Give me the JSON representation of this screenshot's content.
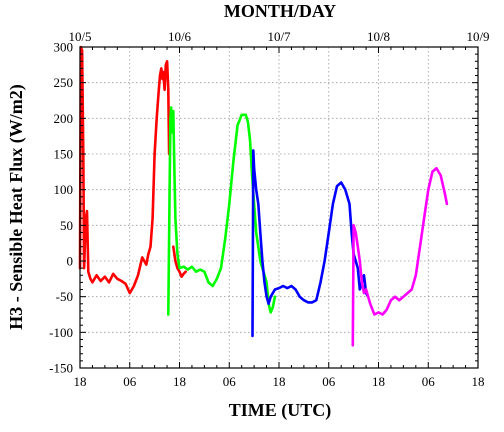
{
  "chart_data": {
    "type": "line",
    "title": "",
    "xlabel": "TIME (UTC)",
    "top_xlabel": "MONTH/DAY",
    "ylabel": "H3 - Sensible Heat Flux (W/m2)",
    "ylim": [
      -150,
      300
    ],
    "yticks": [
      -150,
      -100,
      -50,
      0,
      50,
      100,
      150,
      200,
      250,
      300
    ],
    "xlim": [
      0,
      96
    ],
    "xtick_labels_bottom": [
      "18",
      "06",
      "18",
      "06",
      "18",
      "06",
      "18",
      "06",
      "18"
    ],
    "xtick_labels_top": [
      "10/5",
      "10/6",
      "10/7",
      "10/8",
      "10/9"
    ],
    "grid": true,
    "series": [
      {
        "color": "#ff0000",
        "x_unit": "hours since 10/4 18 UTC",
        "points": [
          [
            0,
            -10
          ],
          [
            0.2,
            300
          ],
          [
            0.5,
            295
          ],
          [
            0.8,
            150
          ],
          [
            1,
            -10
          ],
          [
            1.4,
            60
          ],
          [
            1.7,
            70
          ],
          [
            2,
            -15
          ],
          [
            2.5,
            -25
          ],
          [
            3,
            -30
          ],
          [
            4,
            -20
          ],
          [
            5,
            -28
          ],
          [
            6,
            -22
          ],
          [
            7,
            -30
          ],
          [
            8,
            -18
          ],
          [
            9,
            -25
          ],
          [
            10,
            -28
          ],
          [
            11,
            -32
          ],
          [
            12,
            -45
          ],
          [
            13,
            -35
          ],
          [
            14,
            -20
          ],
          [
            15,
            5
          ],
          [
            16,
            -5
          ],
          [
            16.5,
            10
          ],
          [
            17,
            20
          ],
          [
            17.5,
            60
          ],
          [
            18,
            150
          ],
          [
            18.5,
            200
          ],
          [
            19,
            240
          ],
          [
            19.3,
            260
          ],
          [
            19.6,
            270
          ],
          [
            19.9,
            255
          ],
          [
            20.1,
            265
          ],
          [
            20.4,
            240
          ],
          [
            20.7,
            275
          ],
          [
            21,
            280
          ],
          [
            21.3,
            240
          ],
          [
            21.5,
            150
          ],
          [
            21.7,
            180
          ]
        ]
      },
      {
        "color": "#ff0000",
        "x_unit": "hours since 10/4 18 UTC",
        "points": [
          [
            22.5,
            20
          ],
          [
            23,
            0
          ],
          [
            23.5,
            -10
          ],
          [
            24,
            -15
          ],
          [
            24.5,
            -22
          ],
          [
            25,
            -18
          ],
          [
            25.5,
            -15
          ]
        ]
      },
      {
        "color": "#00ff00",
        "x_unit": "hours since 10/4 18 UTC",
        "points": [
          [
            21.3,
            -75
          ],
          [
            21.6,
            100
          ],
          [
            21.8,
            200
          ],
          [
            22,
            215
          ],
          [
            22.2,
            180
          ],
          [
            22.5,
            210
          ],
          [
            22.8,
            120
          ],
          [
            23,
            60
          ],
          [
            23.5,
            10
          ],
          [
            24,
            -10
          ],
          [
            25,
            -8
          ],
          [
            26,
            -12
          ],
          [
            27,
            -8
          ],
          [
            28,
            -15
          ],
          [
            29,
            -12
          ],
          [
            30,
            -15
          ],
          [
            31,
            -30
          ],
          [
            32,
            -35
          ],
          [
            33,
            -25
          ],
          [
            34,
            -10
          ],
          [
            35,
            30
          ],
          [
            36,
            80
          ],
          [
            37,
            140
          ],
          [
            38,
            190
          ],
          [
            39,
            205
          ],
          [
            40,
            205
          ],
          [
            40.5,
            195
          ],
          [
            41,
            170
          ],
          [
            41.5,
            120
          ],
          [
            42,
            80
          ],
          [
            42.5,
            40
          ],
          [
            43,
            20
          ],
          [
            43.5,
            0
          ],
          [
            44,
            -10
          ],
          [
            45,
            -30
          ],
          [
            45.5,
            -60
          ],
          [
            46,
            -72
          ],
          [
            46.5,
            -65
          ],
          [
            47,
            -50
          ]
        ]
      },
      {
        "color": "#0000ff",
        "x_unit": "hours since 10/4 18 UTC",
        "points": [
          [
            41.6,
            -105
          ],
          [
            41.8,
            155
          ],
          [
            42,
            130
          ],
          [
            42.5,
            100
          ],
          [
            43,
            80
          ],
          [
            43.5,
            40
          ],
          [
            44,
            0
          ],
          [
            44.5,
            -30
          ],
          [
            45,
            -50
          ],
          [
            45.5,
            -60
          ],
          [
            46,
            -50
          ],
          [
            47,
            -40
          ],
          [
            48,
            -38
          ],
          [
            49,
            -35
          ],
          [
            50,
            -38
          ],
          [
            51,
            -35
          ],
          [
            52,
            -40
          ],
          [
            53,
            -50
          ],
          [
            54,
            -55
          ],
          [
            55,
            -58
          ],
          [
            56,
            -58
          ],
          [
            57,
            -55
          ],
          [
            58,
            -30
          ],
          [
            59,
            0
          ],
          [
            60,
            40
          ],
          [
            61,
            80
          ],
          [
            62,
            105
          ],
          [
            63,
            110
          ],
          [
            64,
            100
          ],
          [
            65,
            80
          ],
          [
            65.5,
            40
          ],
          [
            66,
            10
          ],
          [
            66.5,
            0
          ],
          [
            67,
            -10
          ],
          [
            67.5,
            -40
          ],
          [
            68,
            -30
          ],
          [
            68.5,
            -20
          ],
          [
            69,
            -45
          ],
          [
            69.5,
            -50
          ]
        ]
      },
      {
        "color": "#ff00ff",
        "x_unit": "hours since 10/4 18 UTC",
        "points": [
          [
            65.8,
            -118
          ],
          [
            66,
            50
          ],
          [
            66.5,
            40
          ],
          [
            67,
            20
          ],
          [
            67.5,
            0
          ],
          [
            68,
            -30
          ],
          [
            68.5,
            -45
          ],
          [
            69,
            -40
          ],
          [
            70,
            -60
          ],
          [
            71,
            -75
          ],
          [
            72,
            -72
          ],
          [
            73,
            -75
          ],
          [
            74,
            -68
          ],
          [
            75,
            -55
          ],
          [
            76,
            -50
          ],
          [
            77,
            -55
          ],
          [
            78,
            -50
          ],
          [
            79,
            -45
          ],
          [
            80,
            -40
          ],
          [
            81,
            -20
          ],
          [
            82,
            20
          ],
          [
            83,
            60
          ],
          [
            84,
            100
          ],
          [
            85,
            125
          ],
          [
            86,
            130
          ],
          [
            87,
            120
          ],
          [
            88,
            95
          ],
          [
            88.5,
            80
          ]
        ]
      }
    ]
  }
}
